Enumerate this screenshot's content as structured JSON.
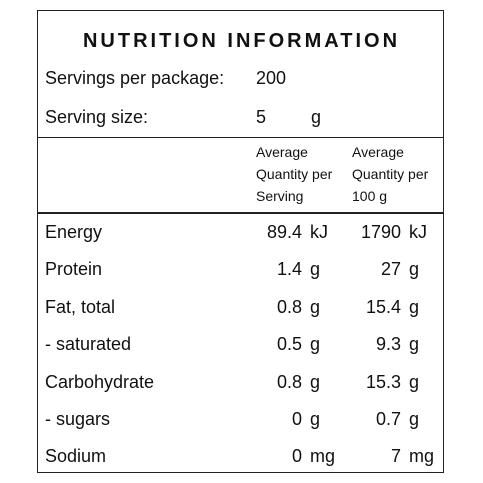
{
  "title": "NUTRITION INFORMATION",
  "servings": [
    {
      "label": "Servings per package:",
      "value": 200,
      "unit": null
    },
    {
      "label": "Serving size:",
      "value": 5,
      "unit": "g"
    }
  ],
  "columns": [
    "Average Quantity per Serving",
    "Average Quantity per 100 g"
  ],
  "rows": [
    {
      "name": "Energy",
      "per_serving": 89.4,
      "per_serving_unit": "kJ",
      "per_100g": 1790,
      "per_100g_unit": "kJ"
    },
    {
      "name": "Protein",
      "per_serving": 1.4,
      "per_serving_unit": "g",
      "per_100g": 27,
      "per_100g_unit": "g"
    },
    {
      "name": "Fat, total",
      "per_serving": 0.8,
      "per_serving_unit": "g",
      "per_100g": 15.4,
      "per_100g_unit": "g"
    },
    {
      "name": "- saturated",
      "per_serving": 0.5,
      "per_serving_unit": "g",
      "per_100g": 9.3,
      "per_100g_unit": "g"
    },
    {
      "name": "Carbohydrate",
      "per_serving": 0.8,
      "per_serving_unit": "g",
      "per_100g": 15.3,
      "per_100g_unit": "g"
    },
    {
      "name": "- sugars",
      "per_serving": 0,
      "per_serving_unit": "g",
      "per_100g": 0.7,
      "per_100g_unit": "g"
    },
    {
      "name": "Sodium",
      "per_serving": 0,
      "per_serving_unit": "mg",
      "per_100g": 7,
      "per_100g_unit": "mg"
    }
  ]
}
